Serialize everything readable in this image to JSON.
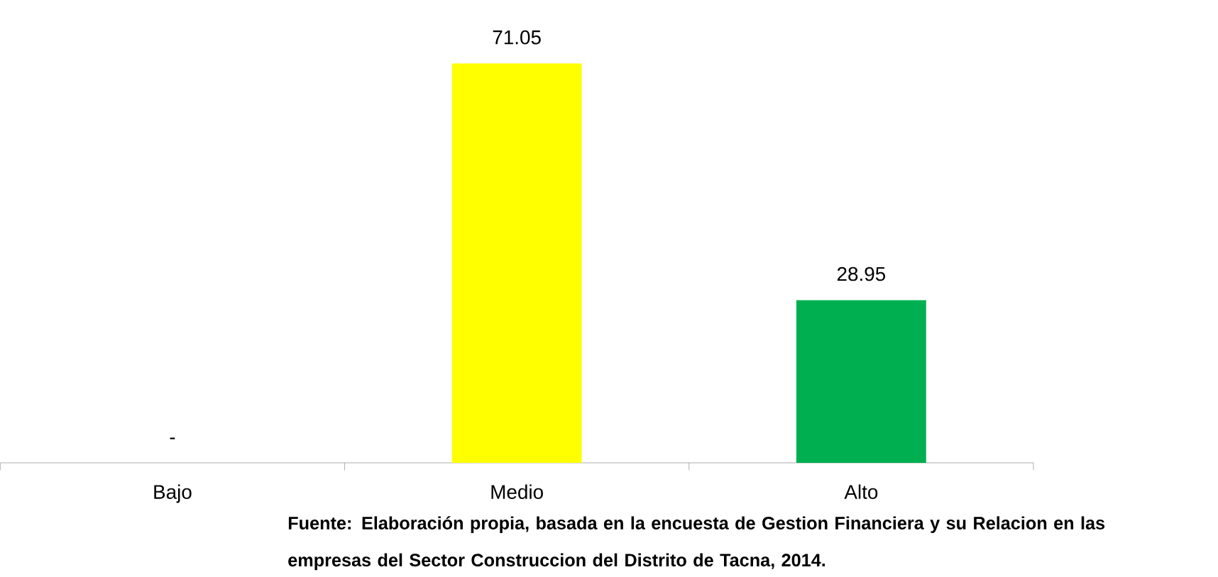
{
  "chart_data": {
    "type": "bar",
    "categories": [
      "Bajo",
      "Medio",
      "Alto"
    ],
    "values": [
      0,
      71.05,
      28.95
    ],
    "colors": [
      null,
      "#ffff00",
      "#00b050"
    ],
    "value_labels": [
      "-",
      "71.05",
      "28.95"
    ],
    "tick_labels": "x",
    "annotations": [
      "**Fuente: Elaboración propia, basada en la encuesta de Gestion Financiera y su Relacion en las empresas del Sector Construccion  del Distrito de Tacna, 2014.**"
    ]
  }
}
